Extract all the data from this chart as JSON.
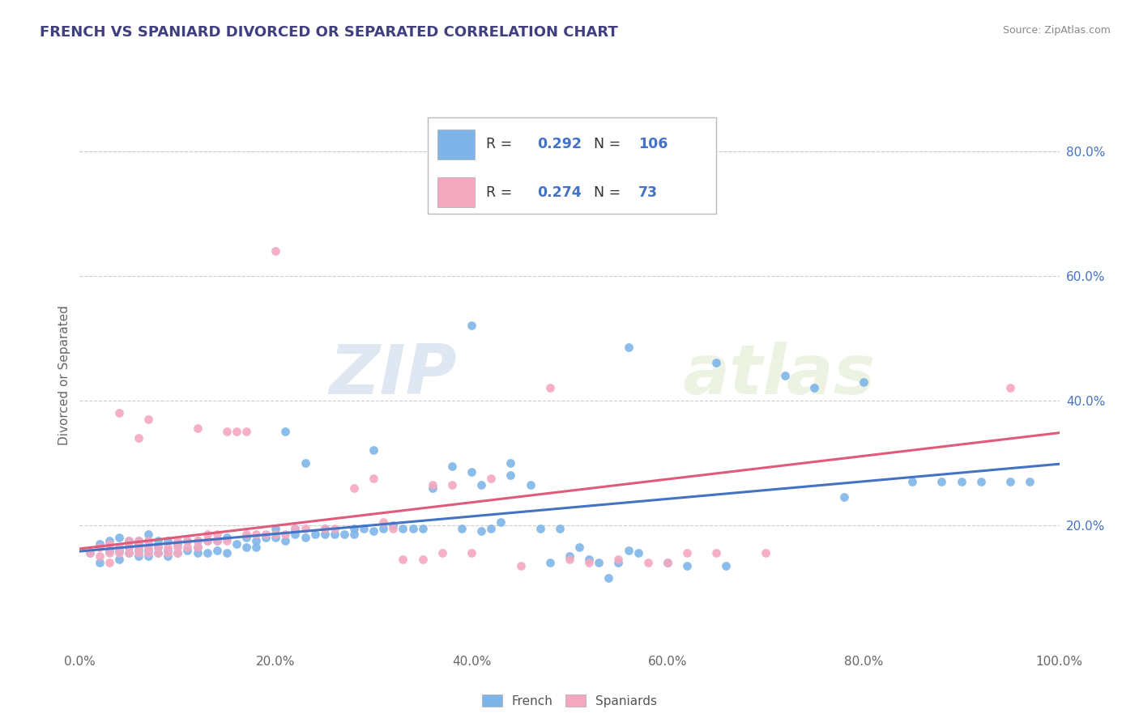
{
  "title": "FRENCH VS SPANIARD DIVORCED OR SEPARATED CORRELATION CHART",
  "source": "Source: ZipAtlas.com",
  "ylabel": "Divorced or Separated",
  "xlim": [
    0.0,
    1.0
  ],
  "ylim": [
    0.0,
    0.88
  ],
  "x_tick_labels": [
    "0.0%",
    "20.0%",
    "40.0%",
    "60.0%",
    "80.0%",
    "100.0%"
  ],
  "x_tick_vals": [
    0.0,
    0.2,
    0.4,
    0.6,
    0.8,
    1.0
  ],
  "y_tick_labels": [
    "20.0%",
    "40.0%",
    "60.0%",
    "80.0%"
  ],
  "y_tick_vals": [
    0.2,
    0.4,
    0.6,
    0.8
  ],
  "french_color": "#7EB5E8",
  "spaniards_color": "#F4A8C0",
  "french_line_color": "#4472C4",
  "spaniards_line_color": "#E05A7A",
  "R_french": 0.292,
  "N_french": 106,
  "R_spaniards": 0.274,
  "N_spaniards": 73,
  "legend_labels": [
    "French",
    "Spaniards"
  ],
  "watermark_zip": "ZIP",
  "watermark_atlas": "atlas",
  "french_scatter": [
    [
      0.01,
      0.155
    ],
    [
      0.02,
      0.14
    ],
    [
      0.02,
      0.17
    ],
    [
      0.03,
      0.16
    ],
    [
      0.03,
      0.175
    ],
    [
      0.04,
      0.145
    ],
    [
      0.04,
      0.16
    ],
    [
      0.04,
      0.18
    ],
    [
      0.05,
      0.155
    ],
    [
      0.05,
      0.165
    ],
    [
      0.05,
      0.175
    ],
    [
      0.06,
      0.15
    ],
    [
      0.06,
      0.16
    ],
    [
      0.06,
      0.17
    ],
    [
      0.06,
      0.175
    ],
    [
      0.07,
      0.15
    ],
    [
      0.07,
      0.16
    ],
    [
      0.07,
      0.175
    ],
    [
      0.07,
      0.185
    ],
    [
      0.08,
      0.155
    ],
    [
      0.08,
      0.165
    ],
    [
      0.08,
      0.175
    ],
    [
      0.09,
      0.15
    ],
    [
      0.09,
      0.16
    ],
    [
      0.09,
      0.175
    ],
    [
      0.1,
      0.155
    ],
    [
      0.1,
      0.17
    ],
    [
      0.11,
      0.16
    ],
    [
      0.11,
      0.175
    ],
    [
      0.12,
      0.155
    ],
    [
      0.12,
      0.165
    ],
    [
      0.12,
      0.175
    ],
    [
      0.13,
      0.155
    ],
    [
      0.13,
      0.175
    ],
    [
      0.14,
      0.16
    ],
    [
      0.14,
      0.175
    ],
    [
      0.15,
      0.155
    ],
    [
      0.15,
      0.18
    ],
    [
      0.16,
      0.17
    ],
    [
      0.17,
      0.165
    ],
    [
      0.17,
      0.18
    ],
    [
      0.18,
      0.165
    ],
    [
      0.18,
      0.175
    ],
    [
      0.19,
      0.18
    ],
    [
      0.2,
      0.18
    ],
    [
      0.2,
      0.195
    ],
    [
      0.21,
      0.175
    ],
    [
      0.21,
      0.35
    ],
    [
      0.22,
      0.185
    ],
    [
      0.22,
      0.195
    ],
    [
      0.23,
      0.18
    ],
    [
      0.23,
      0.3
    ],
    [
      0.24,
      0.185
    ],
    [
      0.25,
      0.185
    ],
    [
      0.25,
      0.195
    ],
    [
      0.26,
      0.185
    ],
    [
      0.27,
      0.185
    ],
    [
      0.28,
      0.185
    ],
    [
      0.28,
      0.195
    ],
    [
      0.29,
      0.195
    ],
    [
      0.3,
      0.19
    ],
    [
      0.3,
      0.32
    ],
    [
      0.31,
      0.195
    ],
    [
      0.32,
      0.2
    ],
    [
      0.33,
      0.195
    ],
    [
      0.34,
      0.195
    ],
    [
      0.35,
      0.195
    ],
    [
      0.36,
      0.26
    ],
    [
      0.38,
      0.295
    ],
    [
      0.39,
      0.195
    ],
    [
      0.4,
      0.285
    ],
    [
      0.4,
      0.52
    ],
    [
      0.41,
      0.19
    ],
    [
      0.41,
      0.265
    ],
    [
      0.42,
      0.195
    ],
    [
      0.43,
      0.205
    ],
    [
      0.44,
      0.28
    ],
    [
      0.44,
      0.3
    ],
    [
      0.46,
      0.265
    ],
    [
      0.47,
      0.195
    ],
    [
      0.48,
      0.14
    ],
    [
      0.49,
      0.195
    ],
    [
      0.5,
      0.15
    ],
    [
      0.51,
      0.165
    ],
    [
      0.52,
      0.145
    ],
    [
      0.53,
      0.14
    ],
    [
      0.54,
      0.115
    ],
    [
      0.55,
      0.14
    ],
    [
      0.56,
      0.16
    ],
    [
      0.56,
      0.485
    ],
    [
      0.57,
      0.155
    ],
    [
      0.6,
      0.14
    ],
    [
      0.62,
      0.135
    ],
    [
      0.65,
      0.46
    ],
    [
      0.66,
      0.135
    ],
    [
      0.72,
      0.44
    ],
    [
      0.75,
      0.42
    ],
    [
      0.78,
      0.245
    ],
    [
      0.8,
      0.43
    ],
    [
      0.85,
      0.27
    ],
    [
      0.88,
      0.27
    ],
    [
      0.9,
      0.27
    ],
    [
      0.92,
      0.27
    ],
    [
      0.95,
      0.27
    ],
    [
      0.97,
      0.27
    ]
  ],
  "spaniards_scatter": [
    [
      0.01,
      0.155
    ],
    [
      0.02,
      0.15
    ],
    [
      0.02,
      0.165
    ],
    [
      0.03,
      0.14
    ],
    [
      0.03,
      0.155
    ],
    [
      0.03,
      0.17
    ],
    [
      0.04,
      0.155
    ],
    [
      0.04,
      0.165
    ],
    [
      0.04,
      0.38
    ],
    [
      0.05,
      0.155
    ],
    [
      0.05,
      0.165
    ],
    [
      0.05,
      0.175
    ],
    [
      0.06,
      0.155
    ],
    [
      0.06,
      0.165
    ],
    [
      0.06,
      0.175
    ],
    [
      0.06,
      0.34
    ],
    [
      0.07,
      0.155
    ],
    [
      0.07,
      0.165
    ],
    [
      0.07,
      0.175
    ],
    [
      0.07,
      0.37
    ],
    [
      0.08,
      0.155
    ],
    [
      0.08,
      0.165
    ],
    [
      0.09,
      0.155
    ],
    [
      0.09,
      0.165
    ],
    [
      0.1,
      0.155
    ],
    [
      0.1,
      0.165
    ],
    [
      0.1,
      0.175
    ],
    [
      0.11,
      0.165
    ],
    [
      0.11,
      0.175
    ],
    [
      0.12,
      0.165
    ],
    [
      0.12,
      0.175
    ],
    [
      0.12,
      0.355
    ],
    [
      0.13,
      0.175
    ],
    [
      0.13,
      0.185
    ],
    [
      0.14,
      0.175
    ],
    [
      0.14,
      0.185
    ],
    [
      0.15,
      0.175
    ],
    [
      0.15,
      0.35
    ],
    [
      0.16,
      0.35
    ],
    [
      0.17,
      0.35
    ],
    [
      0.17,
      0.185
    ],
    [
      0.18,
      0.185
    ],
    [
      0.19,
      0.185
    ],
    [
      0.2,
      0.185
    ],
    [
      0.2,
      0.64
    ],
    [
      0.21,
      0.185
    ],
    [
      0.22,
      0.195
    ],
    [
      0.23,
      0.195
    ],
    [
      0.25,
      0.195
    ],
    [
      0.26,
      0.195
    ],
    [
      0.28,
      0.26
    ],
    [
      0.3,
      0.275
    ],
    [
      0.31,
      0.205
    ],
    [
      0.32,
      0.195
    ],
    [
      0.33,
      0.145
    ],
    [
      0.35,
      0.145
    ],
    [
      0.36,
      0.265
    ],
    [
      0.37,
      0.155
    ],
    [
      0.38,
      0.265
    ],
    [
      0.4,
      0.155
    ],
    [
      0.42,
      0.275
    ],
    [
      0.45,
      0.135
    ],
    [
      0.48,
      0.42
    ],
    [
      0.5,
      0.145
    ],
    [
      0.52,
      0.14
    ],
    [
      0.55,
      0.145
    ],
    [
      0.58,
      0.14
    ],
    [
      0.6,
      0.14
    ],
    [
      0.62,
      0.155
    ],
    [
      0.65,
      0.155
    ],
    [
      0.7,
      0.155
    ],
    [
      0.95,
      0.42
    ]
  ],
  "french_line_x": [
    0.0,
    1.0
  ],
  "french_line_y": [
    0.158,
    0.298
  ],
  "spaniards_line_x": [
    0.0,
    1.0
  ],
  "spaniards_line_y": [
    0.162,
    0.348
  ],
  "background_color": "#ffffff",
  "grid_color": "#cccccc",
  "title_color": "#404080",
  "legend_value_color": "#4472C4",
  "axis_tick_color": "#666666",
  "right_tick_color": "#4472C4"
}
